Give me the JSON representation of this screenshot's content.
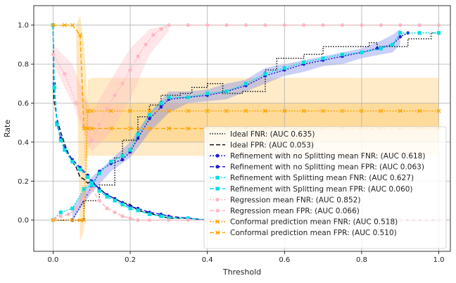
{
  "chart_data": {
    "type": "line",
    "title": "",
    "xlabel": "Threshold",
    "ylabel": "Rate",
    "xlim": [
      -0.05,
      1.03
    ],
    "ylim": [
      -0.16,
      1.1
    ],
    "xticks": [
      0.0,
      0.2,
      0.4,
      0.6,
      0.8,
      1.0
    ],
    "xtick_labels": [
      "0.0",
      "0.2",
      "0.4",
      "0.6",
      "0.8",
      "1.0"
    ],
    "yticks": [
      0.0,
      0.2,
      0.4,
      0.6,
      0.8,
      1.0
    ],
    "ytick_labels": [
      "0.0",
      "0.2",
      "0.4",
      "0.6",
      "0.8",
      "1.0"
    ],
    "grid": true,
    "legend_position": "lower-right",
    "bands": [
      {
        "name": "Conformal prediction mean FNR band",
        "color": "#ffa500",
        "opacity": 0.22,
        "x": [
          0.09,
          0.1,
          1.0
        ],
        "lower": [
          0.36,
          0.4,
          0.4
        ],
        "upper": [
          0.72,
          0.73,
          0.73
        ]
      },
      {
        "name": "Conformal prediction mean FPR band",
        "color": "#ffa500",
        "opacity": 0.22,
        "x": [
          0.08,
          0.09,
          0.1,
          1.0
        ],
        "lower": [
          0.3,
          0.33,
          0.33,
          0.33
        ],
        "upper": [
          0.62,
          0.6,
          0.6,
          0.6
        ]
      },
      {
        "name": "Regression mean FNR band",
        "color": "#ffb6c1",
        "opacity": 0.35,
        "x": [
          0.0,
          0.05,
          0.1,
          0.15,
          0.2,
          0.25,
          0.3
        ],
        "lower": [
          0.8,
          0.6,
          0.35,
          0.45,
          0.62,
          0.85,
          0.97
        ],
        "upper": [
          0.9,
          0.8,
          0.55,
          0.72,
          0.88,
          0.98,
          1.0
        ]
      },
      {
        "name": "Conformal FPR initial spike band",
        "color": "#ffa500",
        "opacity": 0.25,
        "x": [
          0.06,
          0.07,
          0.08,
          0.09
        ],
        "lower": [
          0.9,
          -0.11,
          -0.05,
          0.3
        ],
        "upper": [
          1.0,
          1.05,
          0.9,
          0.62
        ]
      },
      {
        "name": "Refinement with no Splitting mean FNR band",
        "color": "#6677ee",
        "opacity": 0.35,
        "x": [
          0.05,
          0.1,
          0.15,
          0.2,
          0.25,
          0.3,
          0.35,
          0.4,
          0.45,
          0.5,
          0.55,
          0.6,
          0.65,
          0.7,
          0.75,
          0.8,
          0.85,
          0.88,
          0.9
        ],
        "lower": [
          0.0,
          0.14,
          0.25,
          0.32,
          0.45,
          0.55,
          0.6,
          0.61,
          0.62,
          0.66,
          0.7,
          0.74,
          0.76,
          0.79,
          0.8,
          0.83,
          0.85,
          0.86,
          0.9
        ],
        "upper": [
          0.06,
          0.22,
          0.31,
          0.4,
          0.55,
          0.66,
          0.66,
          0.67,
          0.7,
          0.72,
          0.78,
          0.8,
          0.82,
          0.84,
          0.86,
          0.88,
          0.92,
          0.95,
          0.98
        ]
      }
    ],
    "series": [
      {
        "name": "Ideal FNR: (AUC 0.635)",
        "color": "#111111",
        "dash": "1.5,2",
        "marker": "none",
        "x": [
          0.0,
          0.08,
          0.08,
          0.12,
          0.12,
          0.16,
          0.16,
          0.18,
          0.18,
          0.22,
          0.22,
          0.25,
          0.25,
          0.28,
          0.28,
          0.33,
          0.33,
          0.36,
          0.36,
          0.4,
          0.4,
          0.44,
          0.44,
          0.49,
          0.49,
          0.55,
          0.55,
          0.58,
          0.58,
          0.65,
          0.65,
          0.7,
          0.7,
          0.82,
          0.82,
          0.84,
          0.84,
          0.92,
          0.92,
          0.98,
          0.98,
          1.0
        ],
        "y": [
          0.0,
          0.0,
          0.1,
          0.1,
          0.18,
          0.18,
          0.32,
          0.32,
          0.41,
          0.41,
          0.53,
          0.53,
          0.59,
          0.59,
          0.64,
          0.64,
          0.65,
          0.65,
          0.68,
          0.68,
          0.7,
          0.7,
          0.65,
          0.65,
          0.66,
          0.66,
          0.77,
          0.77,
          0.83,
          0.83,
          0.85,
          0.85,
          0.89,
          0.89,
          0.91,
          0.91,
          0.89,
          0.89,
          0.93,
          0.93,
          0.96,
          0.96
        ]
      },
      {
        "name": "Ideal FPR: (AUC 0.053)",
        "color": "#111111",
        "dash": "6,3",
        "marker": "none",
        "x": [
          0.0,
          0.002,
          0.01,
          0.02,
          0.03,
          0.04,
          0.05,
          0.06,
          0.07,
          0.08,
          0.09,
          0.1,
          0.12,
          0.14,
          0.16,
          0.18,
          0.2,
          0.22,
          0.24,
          0.26,
          0.28,
          0.3,
          0.35,
          0.4,
          0.5,
          0.6,
          0.7,
          0.8,
          1.0
        ],
        "y": [
          1.0,
          0.62,
          0.52,
          0.45,
          0.39,
          0.34,
          0.3,
          0.27,
          0.22,
          0.21,
          0.19,
          0.2,
          0.16,
          0.13,
          0.11,
          0.09,
          0.08,
          0.05,
          0.04,
          0.03,
          0.02,
          0.01,
          0.01,
          0.0,
          0.0,
          0.0,
          0.0,
          0.0,
          0.0
        ]
      },
      {
        "name": "Refinement with no Splitting mean FNR: (AUC 0.618)",
        "color": "#1b1bdd",
        "dash": "2,2",
        "marker": "circle",
        "markersize": 2.3,
        "x": [
          0.0,
          0.05,
          0.1,
          0.12,
          0.15,
          0.18,
          0.2,
          0.22,
          0.25,
          0.28,
          0.3,
          0.35,
          0.4,
          0.45,
          0.5,
          0.55,
          0.6,
          0.65,
          0.7,
          0.75,
          0.8,
          0.84,
          0.88,
          0.9,
          0.92
        ],
        "y": [
          0.0,
          0.0,
          0.17,
          0.25,
          0.29,
          0.31,
          0.35,
          0.42,
          0.52,
          0.58,
          0.62,
          0.63,
          0.64,
          0.66,
          0.69,
          0.74,
          0.77,
          0.8,
          0.82,
          0.84,
          0.86,
          0.88,
          0.9,
          0.94,
          0.96
        ]
      },
      {
        "name": "Refinement with no Splitting mean FPR: (AUC 0.063)",
        "color": "#1b1bdd",
        "dash": "6,3",
        "marker": "circle",
        "markersize": 2.3,
        "x": [
          0.0,
          0.003,
          0.01,
          0.02,
          0.03,
          0.05,
          0.07,
          0.09,
          0.1,
          0.12,
          0.14,
          0.16,
          0.18,
          0.2,
          0.22,
          0.25,
          0.28,
          0.3,
          0.35,
          0.4,
          0.5,
          0.6,
          0.7,
          0.8,
          0.9
        ],
        "y": [
          1.0,
          0.7,
          0.5,
          0.42,
          0.37,
          0.31,
          0.27,
          0.23,
          0.2,
          0.16,
          0.13,
          0.11,
          0.09,
          0.07,
          0.06,
          0.04,
          0.03,
          0.02,
          0.01,
          0.0,
          0.0,
          0.0,
          0.0,
          0.0,
          0.0
        ]
      },
      {
        "name": "Refinement with Splitting mean FNR: (AUC 0.627)",
        "color": "#00e0e0",
        "dash": "2,2",
        "marker": "square",
        "markersize": 2.6,
        "x": [
          0.0,
          0.02,
          0.05,
          0.08,
          0.1,
          0.12,
          0.15,
          0.18,
          0.2,
          0.22,
          0.25,
          0.28,
          0.3,
          0.35,
          0.4,
          0.45,
          0.5,
          0.55,
          0.6,
          0.65,
          0.7,
          0.75,
          0.8,
          0.85,
          0.88,
          0.9,
          0.95,
          1.0
        ],
        "y": [
          0.0,
          0.04,
          0.06,
          0.16,
          0.18,
          0.24,
          0.3,
          0.33,
          0.36,
          0.44,
          0.54,
          0.6,
          0.63,
          0.63,
          0.65,
          0.66,
          0.7,
          0.75,
          0.78,
          0.81,
          0.83,
          0.85,
          0.86,
          0.88,
          0.9,
          0.96,
          0.96,
          0.96
        ]
      },
      {
        "name": "Refinement with Splitting mean FPR: (AUC 0.060)",
        "color": "#00e0e0",
        "dash": "6,3",
        "marker": "square",
        "markersize": 2.6,
        "x": [
          0.0,
          0.003,
          0.01,
          0.02,
          0.03,
          0.05,
          0.07,
          0.09,
          0.1,
          0.12,
          0.14,
          0.16,
          0.18,
          0.2,
          0.22,
          0.25,
          0.28,
          0.3,
          0.35,
          0.4,
          0.5,
          0.6,
          0.7,
          0.8,
          0.9
        ],
        "y": [
          1.0,
          0.68,
          0.49,
          0.41,
          0.36,
          0.3,
          0.26,
          0.22,
          0.19,
          0.15,
          0.12,
          0.1,
          0.08,
          0.06,
          0.05,
          0.03,
          0.02,
          0.01,
          0.01,
          0.0,
          0.0,
          0.0,
          0.0,
          0.0,
          0.0
        ]
      },
      {
        "name": "Regression mean FNR: (AUC 0.852)",
        "color": "#ffb6c1",
        "dash": "2,2",
        "marker": "circle",
        "markersize": 2.6,
        "x": [
          0.0,
          0.03,
          0.06,
          0.08,
          0.1,
          0.12,
          0.14,
          0.16,
          0.18,
          0.2,
          0.22,
          0.24,
          0.26,
          0.28,
          0.3,
          0.35,
          0.4,
          0.45,
          0.5,
          0.55,
          0.6,
          0.65,
          0.7,
          0.75,
          0.8,
          0.85,
          0.9,
          0.95,
          1.0
        ],
        "y": [
          0.85,
          0.75,
          0.6,
          0.48,
          0.41,
          0.49,
          0.57,
          0.64,
          0.7,
          0.77,
          0.84,
          0.9,
          0.95,
          0.98,
          1.0,
          1.0,
          1.0,
          1.0,
          1.0,
          1.0,
          1.0,
          1.0,
          1.0,
          1.0,
          1.0,
          1.0,
          1.0,
          1.0,
          1.0
        ]
      },
      {
        "name": "Regression mean FPR: (AUC 0.066)",
        "color": "#ffb6c1",
        "dash": "6,3",
        "marker": "circle",
        "markersize": 2.6,
        "x": [
          0.0,
          0.02,
          0.04,
          0.06,
          0.08,
          0.1,
          0.12,
          0.14,
          0.16,
          0.18,
          0.2,
          0.22,
          0.25,
          0.3,
          0.35,
          0.4,
          0.5,
          0.6,
          0.7,
          0.8,
          0.9,
          1.0
        ],
        "y": [
          0.0,
          0.02,
          0.03,
          0.06,
          0.11,
          0.16,
          0.1,
          0.06,
          0.04,
          0.02,
          0.01,
          0.0,
          0.0,
          0.0,
          0.0,
          0.0,
          0.0,
          0.0,
          0.0,
          0.0,
          0.0,
          0.0
        ]
      },
      {
        "name": "Conformal prediction mean FNR: (AUC 0.518)",
        "color": "#ffa500",
        "dash": "2,2",
        "marker": "x",
        "markersize": 2.6,
        "x": [
          0.0,
          0.05,
          0.07,
          0.08,
          0.09,
          0.1,
          0.15,
          0.2,
          0.25,
          0.3,
          0.35,
          0.4,
          0.45,
          0.5,
          0.55,
          0.6,
          0.65,
          0.7,
          0.75,
          0.8,
          0.85,
          0.9,
          0.95,
          1.0
        ],
        "y": [
          0.0,
          0.0,
          0.0,
          0.0,
          0.56,
          0.56,
          0.56,
          0.56,
          0.56,
          0.56,
          0.56,
          0.56,
          0.56,
          0.56,
          0.56,
          0.56,
          0.56,
          0.56,
          0.56,
          0.56,
          0.56,
          0.56,
          0.56,
          0.56
        ]
      },
      {
        "name": "Conformal prediction mean FPR: (AUC 0.510)",
        "color": "#ffa500",
        "dash": "6,3",
        "marker": "x",
        "markersize": 2.6,
        "x": [
          0.0,
          0.03,
          0.05,
          0.07,
          0.08,
          0.09,
          0.1,
          0.15,
          0.2,
          0.25,
          0.3,
          0.35,
          0.4,
          0.45,
          0.5,
          0.55,
          0.6,
          0.65,
          0.7,
          0.75,
          0.8,
          0.85,
          0.9,
          0.95,
          1.0
        ],
        "y": [
          1.0,
          1.0,
          1.0,
          0.95,
          0.47,
          0.47,
          0.47,
          0.47,
          0.47,
          0.47,
          0.47,
          0.47,
          0.47,
          0.47,
          0.47,
          0.47,
          0.47,
          0.47,
          0.47,
          0.47,
          0.47,
          0.47,
          0.47,
          0.47,
          0.47
        ]
      }
    ]
  }
}
